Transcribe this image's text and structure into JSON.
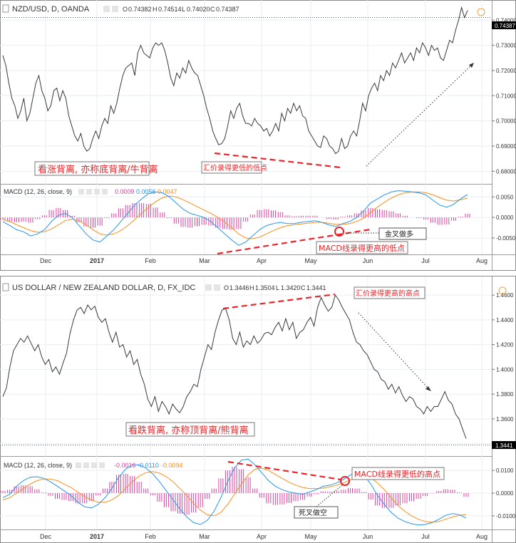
{
  "colors": {
    "price_line": "#3a3a3a",
    "macd_line": "#2196f3",
    "signal_line": "#ff8c1a",
    "histogram": "#e040a0",
    "annotation_red": "#e8252a",
    "annotation_dotted": "#333333",
    "grid": "#e9eef3",
    "price_tag_bg": "#000000",
    "legend_macd_val": "#e040a0",
    "legend_signal_val": "#2196f3",
    "legend_hist_val": "#ff8c1a"
  },
  "x_axis_labels": [
    "Dec",
    "2017",
    "Feb",
    "Mar",
    "Apr",
    "May",
    "Jun",
    "Jul",
    "Aug"
  ],
  "chart_data": [
    {
      "type": "line",
      "pane": "top-price",
      "title": "NZD/USD, D, OANDA",
      "ohlc": {
        "o_label": "O",
        "o": "0.74382",
        "h_label": "H",
        "h": "0.74514",
        "l_label": "L",
        "l": "0.74020",
        "c_label": "C",
        "c": "0.74387"
      },
      "last_price": "0.74387",
      "ylim": [
        0.675,
        0.748
      ],
      "y_ticks": [
        "0.74000",
        "0.73000",
        "0.72000",
        "0.71000",
        "0.70000",
        "0.69000",
        "0.68000"
      ],
      "series": [
        {
          "values": [
            0.726,
            0.722,
            0.715,
            0.709,
            0.706,
            0.701,
            0.704,
            0.709,
            0.7,
            0.703,
            0.709,
            0.715,
            0.718,
            0.712,
            0.709,
            0.704,
            0.706,
            0.712,
            0.713,
            0.708,
            0.712,
            0.709,
            0.702,
            0.698,
            0.694,
            0.692,
            0.695,
            0.69,
            0.688,
            0.689,
            0.693,
            0.696,
            0.693,
            0.698,
            0.701,
            0.699,
            0.706,
            0.703,
            0.707,
            0.713,
            0.718,
            0.721,
            0.722,
            0.723,
            0.718,
            0.727,
            0.73,
            0.727,
            0.726,
            0.725,
            0.729,
            0.731,
            0.73,
            0.731,
            0.728,
            0.723,
            0.717,
            0.714,
            0.719,
            0.717,
            0.721,
            0.719,
            0.724,
            0.721,
            0.719,
            0.718,
            0.714,
            0.71,
            0.705,
            0.701,
            0.696,
            0.693,
            0.6905,
            0.691,
            0.693,
            0.698,
            0.704,
            0.701,
            0.705,
            0.707,
            0.702,
            0.699,
            0.699,
            0.698,
            0.701,
            0.699,
            0.698,
            0.696,
            0.697,
            0.694,
            0.696,
            0.699,
            0.696,
            0.703,
            0.7,
            0.705,
            0.703,
            0.707,
            0.704,
            0.706,
            0.702,
            0.701,
            0.696,
            0.694,
            0.692,
            0.69,
            0.6895,
            0.694,
            0.693,
            0.69,
            0.689,
            0.687,
            0.688,
            0.693,
            0.689,
            0.69,
            0.694,
            0.696,
            0.694,
            0.7,
            0.707,
            0.704,
            0.71,
            0.713,
            0.715,
            0.712,
            0.718,
            0.716,
            0.72,
            0.718,
            0.723,
            0.721,
            0.724,
            0.727,
            0.723,
            0.725,
            0.727,
            0.724,
            0.729,
            0.727,
            0.731,
            0.729,
            0.726,
            0.73,
            0.728,
            0.729,
            0.725,
            0.724,
            0.728,
            0.732,
            0.731,
            0.736,
            0.74,
            0.745,
            0.741,
            0.7439
          ]
        }
      ],
      "annotations": [
        "看涨背离, 亦称底背离/牛背离",
        "汇价录得更低的低点"
      ]
    },
    {
      "type": "line",
      "pane": "top-macd",
      "title": "MACD (12, 26, close, 9)",
      "legend_values": [
        "0.0009",
        "0.0056",
        "0.0047"
      ],
      "ylim": [
        -0.009,
        0.008
      ],
      "y_ticks": [
        "0.0050",
        "0.0000",
        "-0.0050"
      ],
      "series": [
        {
          "values": [
            -0.001,
            -0.002,
            -0.003,
            -0.0035,
            -0.0045,
            -0.004,
            -0.003,
            -0.001,
            0.0005,
            0.001,
            0.0,
            -0.002,
            -0.004,
            -0.0055,
            -0.006,
            -0.0045,
            -0.003,
            -0.001,
            0.001,
            0.003,
            0.0045,
            0.0058,
            0.0062,
            0.006,
            0.005,
            0.0035,
            0.002,
            0.001,
            0.0005,
            0.0,
            -0.001,
            -0.0025,
            -0.004,
            -0.0055,
            -0.0068,
            -0.006,
            -0.0045,
            -0.003,
            -0.002,
            -0.0015,
            -0.0012,
            -0.0015,
            -0.0015,
            -0.0012,
            -0.001,
            -0.0008,
            -0.0012,
            -0.0018,
            -0.0022,
            -0.0015,
            -0.001,
            0.0,
            0.0015,
            0.0035,
            0.0045,
            0.0055,
            0.0062,
            0.0065,
            0.0064,
            0.0062,
            0.006,
            0.0055,
            0.0042,
            0.003,
            0.0025,
            0.0032,
            0.0045,
            0.0056
          ]
        },
        {
          "values": [
            -0.0005,
            -0.001,
            -0.0018,
            -0.0025,
            -0.0032,
            -0.0036,
            -0.0035,
            -0.0028,
            -0.0018,
            -0.0008,
            -0.0004,
            -0.0008,
            -0.0018,
            -0.003,
            -0.004,
            -0.0043,
            -0.004,
            -0.0032,
            -0.002,
            -0.0005,
            0.001,
            0.0025,
            0.0038,
            0.0048,
            0.0052,
            0.005,
            0.0043,
            0.0035,
            0.0026,
            0.0018,
            0.001,
            0.0,
            -0.0012,
            -0.0025,
            -0.004,
            -0.005,
            -0.0052,
            -0.0048,
            -0.004,
            -0.0032,
            -0.0025,
            -0.002,
            -0.0018,
            -0.0016,
            -0.0014,
            -0.0012,
            -0.0012,
            -0.0014,
            -0.0017,
            -0.0017,
            -0.0015,
            -0.001,
            -0.0002,
            0.0012,
            0.0025,
            0.0037,
            0.0047,
            0.0055,
            0.006,
            0.0062,
            0.0062,
            0.006,
            0.0055,
            0.0048,
            0.0042,
            0.004,
            0.0043,
            0.0047
          ]
        }
      ],
      "histogram": [
        -0.0005,
        -0.001,
        -0.0012,
        -0.001,
        -0.0013,
        -0.0004,
        0.0005,
        0.0018,
        0.0023,
        0.0018,
        0.0004,
        -0.0012,
        -0.0022,
        -0.0025,
        -0.002,
        -0.0002,
        0.001,
        0.0022,
        0.003,
        0.0035,
        0.0035,
        0.0033,
        0.0024,
        0.0012,
        -0.0002,
        -0.0015,
        -0.0023,
        -0.0025,
        -0.0021,
        -0.0018,
        -0.002,
        -0.0025,
        -0.0028,
        -0.003,
        -0.0028,
        -0.001,
        0.0007,
        0.0018,
        0.002,
        0.0017,
        0.0013,
        0.0005,
        0.0003,
        0.0004,
        0.0004,
        0.0004,
        0.0,
        -0.0004,
        -0.0005,
        0.0002,
        0.0005,
        0.001,
        0.0017,
        0.0023,
        0.002,
        0.0018,
        0.0015,
        0.001,
        0.0004,
        0.0,
        -0.0002,
        -0.0005,
        -0.0013,
        -0.0018,
        -0.0017,
        -0.0008,
        0.0002,
        0.0009
      ],
      "annotations": [
        "金叉做多",
        "MACD线录得更高的低点"
      ]
    },
    {
      "type": "line",
      "pane": "bottom-price",
      "title": "US DOLLAR / NEW ZEALAND DOLLAR, D, FX_IDC",
      "ohlc": {
        "o_label": "O",
        "o": "1.3446",
        "h_label": "H",
        "h": "1.3504",
        "l_label": "L",
        "l": "1.3420",
        "c_label": "C",
        "c": "1.3441"
      },
      "last_price": "1.3441",
      "ylim": [
        1.33,
        1.475
      ],
      "y_ticks": [
        "1.4600",
        "1.4400",
        "1.4200",
        "1.4000",
        "1.3800",
        "1.3600",
        "1.3400"
      ],
      "series": [
        {
          "values": [
            1.378,
            1.385,
            1.402,
            1.415,
            1.42,
            1.425,
            1.422,
            1.427,
            1.421,
            1.415,
            1.42,
            1.41,
            1.404,
            1.408,
            1.398,
            1.402,
            1.396,
            1.405,
            1.413,
            1.429,
            1.44,
            1.448,
            1.45,
            1.445,
            1.452,
            1.448,
            1.451,
            1.442,
            1.438,
            1.441,
            1.43,
            1.422,
            1.43,
            1.418,
            1.42,
            1.41,
            1.415,
            1.404,
            1.408,
            1.396,
            1.388,
            1.376,
            1.37,
            1.378,
            1.366,
            1.374,
            1.37,
            1.364,
            1.372,
            1.368,
            1.365,
            1.37,
            1.378,
            1.382,
            1.388,
            1.386,
            1.4,
            1.41,
            1.42,
            1.416,
            1.43,
            1.44,
            1.448,
            1.449,
            1.44,
            1.425,
            1.42,
            1.43,
            1.418,
            1.423,
            1.42,
            1.427,
            1.421,
            1.424,
            1.429,
            1.43,
            1.428,
            1.434,
            1.438,
            1.431,
            1.441,
            1.432,
            1.438,
            1.425,
            1.43,
            1.432,
            1.438,
            1.442,
            1.435,
            1.45,
            1.458,
            1.452,
            1.447,
            1.45,
            1.46,
            1.456,
            1.45,
            1.445,
            1.44,
            1.43,
            1.422,
            1.42,
            1.415,
            1.412,
            1.406,
            1.4,
            1.398,
            1.392,
            1.39,
            1.384,
            1.388,
            1.381,
            1.386,
            1.379,
            1.374,
            1.378,
            1.376,
            1.37,
            1.368,
            1.364,
            1.37,
            1.366,
            1.37,
            1.37,
            1.376,
            1.382,
            1.375,
            1.372,
            1.364,
            1.36,
            1.352,
            1.3441
          ]
        }
      ],
      "annotations": [
        "看跌背离, 亦称顶背离/熊背离",
        "汇价录得更高的高点"
      ]
    },
    {
      "type": "line",
      "pane": "bottom-macd",
      "title": "MACD (12, 26, close, 9)",
      "legend_values": [
        "-0.0016",
        "-0.0110",
        "-0.0094"
      ],
      "ylim": [
        -0.016,
        0.016
      ],
      "y_ticks": [
        "0.0100",
        "0.0000",
        "-0.0100"
      ],
      "series": [
        {
          "values": [
            -0.002,
            -0.0005,
            0.003,
            0.0055,
            0.007,
            0.0072,
            0.0065,
            0.005,
            0.003,
            0.001,
            -0.001,
            -0.004,
            -0.006,
            -0.0065,
            -0.005,
            -0.002,
            0.002,
            0.007,
            0.0105,
            0.0125,
            0.0125,
            0.011,
            0.0085,
            0.005,
            0.001,
            -0.003,
            -0.007,
            -0.0105,
            -0.013,
            -0.0138,
            -0.012,
            -0.008,
            -0.002,
            0.005,
            0.011,
            0.0145,
            0.015,
            0.0125,
            0.009,
            0.0055,
            0.003,
            0.0015,
            0.0005,
            0.0,
            -0.0005,
            0.0005,
            0.0015,
            0.003,
            0.0035,
            0.0045,
            0.006,
            0.008,
            0.009,
            0.008,
            0.004,
            -0.001,
            -0.005,
            -0.0085,
            -0.011,
            -0.0125,
            -0.0135,
            -0.014,
            -0.0138,
            -0.013,
            -0.0115,
            -0.0098,
            -0.009,
            -0.0095,
            -0.011
          ]
        },
        {
          "values": [
            -0.003,
            -0.002,
            0.0,
            0.002,
            0.004,
            0.0055,
            0.0062,
            0.0062,
            0.0055,
            0.004,
            0.0025,
            0.0005,
            -0.0015,
            -0.003,
            -0.004,
            -0.004,
            -0.003,
            -0.001,
            0.002,
            0.005,
            0.0075,
            0.009,
            0.0095,
            0.0088,
            0.0072,
            0.005,
            0.002,
            -0.001,
            -0.0045,
            -0.0075,
            -0.0095,
            -0.01,
            -0.0085,
            -0.005,
            -0.0005,
            0.004,
            0.008,
            0.0105,
            0.011,
            0.01,
            0.0082,
            0.0065,
            0.0048,
            0.0035,
            0.0025,
            0.002,
            0.002,
            0.0022,
            0.0028,
            0.0035,
            0.0045,
            0.0058,
            0.007,
            0.0075,
            0.0068,
            0.0045,
            0.0015,
            -0.002,
            -0.0055,
            -0.008,
            -0.01,
            -0.0115,
            -0.0125,
            -0.0128,
            -0.0125,
            -0.0115,
            -0.0105,
            -0.0098,
            -0.0094
          ]
        }
      ],
      "histogram": [
        0.001,
        0.0015,
        0.003,
        0.0035,
        0.003,
        0.0017,
        0.0003,
        -0.0012,
        -0.0025,
        -0.003,
        -0.0035,
        -0.0045,
        -0.0045,
        -0.0035,
        -0.001,
        0.002,
        0.005,
        0.008,
        0.0085,
        0.0075,
        0.005,
        0.002,
        -0.001,
        -0.0038,
        -0.0062,
        -0.008,
        -0.009,
        -0.0095,
        -0.0085,
        -0.0063,
        -0.0025,
        0.002,
        0.0065,
        0.01,
        0.0115,
        0.0105,
        0.007,
        0.002,
        -0.002,
        -0.0045,
        -0.0052,
        -0.005,
        -0.0043,
        -0.0035,
        -0.003,
        -0.0015,
        -0.0005,
        0.0008,
        0.0007,
        0.001,
        0.0015,
        0.0022,
        0.002,
        0.0005,
        -0.0028,
        -0.0055,
        -0.0065,
        -0.0065,
        -0.0055,
        -0.0045,
        -0.0035,
        -0.0025,
        -0.0013,
        -0.0002,
        0.001,
        0.0017,
        0.0015,
        0.0003,
        -0.0016
      ],
      "annotations": [
        "死叉做空",
        "MACD线录得更低的高点"
      ]
    }
  ]
}
